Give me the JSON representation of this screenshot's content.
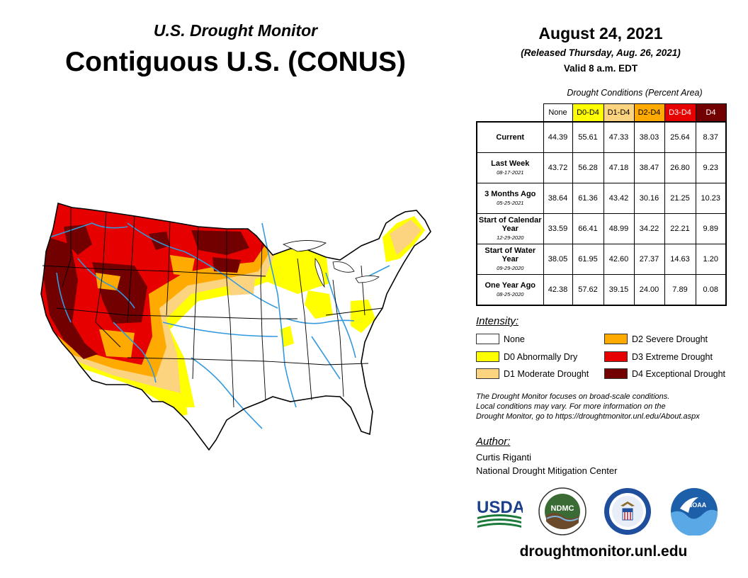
{
  "header": {
    "subtitle": "U.S. Drought Monitor",
    "title": "Contiguous U.S. (CONUS)",
    "date": "August 24, 2021",
    "released": "(Released Thursday, Aug. 26, 2021)",
    "valid": "Valid 8 a.m. EDT"
  },
  "table": {
    "caption": "Drought Conditions (Percent Area)",
    "columns": [
      "None",
      "D0-D4",
      "D1-D4",
      "D2-D4",
      "D3-D4",
      "D4"
    ],
    "column_colors": [
      "#ffffff",
      "#ffff00",
      "#fcd37f",
      "#ffaa00",
      "#e60000",
      "#730000"
    ],
    "rows": [
      {
        "label": "Current",
        "date": "",
        "values": [
          "44.39",
          "55.61",
          "47.33",
          "38.03",
          "25.64",
          "8.37"
        ]
      },
      {
        "label": "Last Week",
        "date": "08-17-2021",
        "values": [
          "43.72",
          "56.28",
          "47.18",
          "38.47",
          "26.80",
          "9.23"
        ]
      },
      {
        "label": "3 Months Ago",
        "date": "05-25-2021",
        "values": [
          "38.64",
          "61.36",
          "43.42",
          "30.16",
          "21.25",
          "10.23"
        ]
      },
      {
        "label": "Start of Calendar Year",
        "date": "12-29-2020",
        "values": [
          "33.59",
          "66.41",
          "48.99",
          "34.22",
          "22.21",
          "9.89"
        ]
      },
      {
        "label": "Start of Water Year",
        "date": "09-29-2020",
        "values": [
          "38.05",
          "61.95",
          "42.60",
          "27.37",
          "14.63",
          "1.20"
        ]
      },
      {
        "label": "One Year Ago",
        "date": "08-25-2020",
        "values": [
          "42.38",
          "57.62",
          "39.15",
          "24.00",
          "7.89",
          "0.08"
        ]
      }
    ]
  },
  "legend": {
    "title": "Intensity:",
    "items": [
      {
        "label": "None",
        "color": "#ffffff"
      },
      {
        "label": "D0 Abnormally Dry",
        "color": "#ffff00"
      },
      {
        "label": "D1 Moderate Drought",
        "color": "#fcd37f"
      },
      {
        "label": "D2 Severe Drought",
        "color": "#ffaa00"
      },
      {
        "label": "D3 Extreme Drought",
        "color": "#e60000"
      },
      {
        "label": "D4 Exceptional Drought",
        "color": "#730000"
      }
    ]
  },
  "note": {
    "line1": "The Drought Monitor focuses on broad-scale conditions.",
    "line2": "Local conditions may vary. For more information on the",
    "line3": "Drought Monitor, go to https://droughtmonitor.unl.edu/About.aspx"
  },
  "author": {
    "title": "Author:",
    "name": "Curtis Riganti",
    "org": "National Drought Mitigation Center"
  },
  "logos": {
    "usda": "USDA",
    "ndmc": "NDMC",
    "noaa": "NOAA"
  },
  "website": "droughtmonitor.unl.edu",
  "colors": {
    "river": "#3399dd",
    "border": "#000000"
  }
}
